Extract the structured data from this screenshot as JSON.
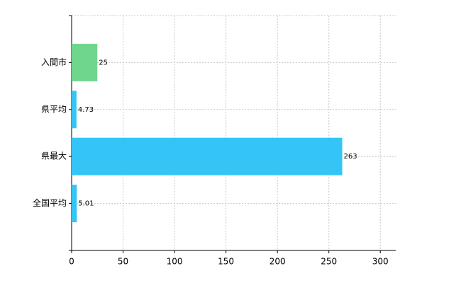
{
  "chart_data": {
    "type": "hbar",
    "categories": [
      "入間市",
      "県平均",
      "県最大",
      "全国平均"
    ],
    "values": [
      25,
      4.73,
      263,
      5.01
    ],
    "colors": [
      "#6fd68d",
      "#35c4f6",
      "#35c4f6",
      "#35c4f6"
    ],
    "xlim": [
      0,
      315
    ],
    "xticks": [
      0,
      50,
      100,
      150,
      200,
      250,
      300
    ],
    "grid": true
  }
}
